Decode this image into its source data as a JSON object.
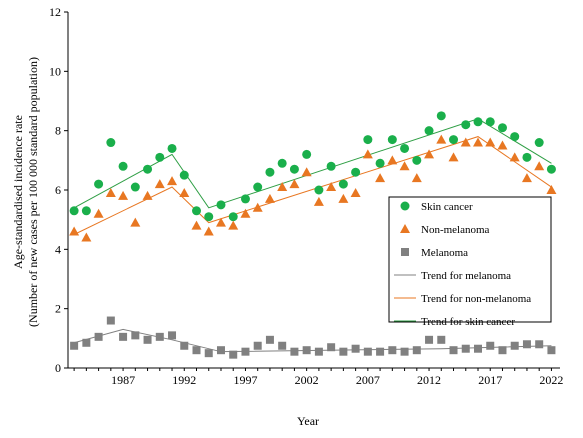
{
  "chart_data": {
    "type": "scatter",
    "ylabel": "Age-standardised incidence rate",
    "ylabel_sub": "(Number of new cases per 100 000 standard population)",
    "xlabel": "Year",
    "ylim": [
      0,
      12
    ],
    "yticks": [
      0,
      2,
      4,
      6,
      8,
      10,
      12
    ],
    "xlim": [
      1982.5,
      2022.7
    ],
    "xticks": [
      1987,
      1992,
      1997,
      2002,
      2007,
      2012,
      2017,
      2022
    ],
    "legend_position": "right",
    "grid": false,
    "x": [
      1983,
      1984,
      1985,
      1986,
      1987,
      1988,
      1989,
      1990,
      1991,
      1992,
      1993,
      1994,
      1995,
      1996,
      1997,
      1998,
      1999,
      2000,
      2001,
      2002,
      2003,
      2004,
      2005,
      2006,
      2007,
      2008,
      2009,
      2010,
      2011,
      2012,
      2013,
      2014,
      2015,
      2016,
      2017,
      2018,
      2019,
      2020,
      2021,
      2022
    ],
    "series": [
      {
        "name": "Skin cancer",
        "kind": "points",
        "marker": "circle",
        "color": "#1aaf4b",
        "values": [
          5.3,
          5.3,
          6.2,
          7.6,
          6.8,
          6.1,
          6.7,
          7.1,
          7.4,
          6.5,
          5.3,
          5.1,
          5.5,
          5.1,
          5.7,
          6.1,
          6.6,
          6.9,
          6.7,
          7.2,
          6.0,
          6.8,
          6.2,
          6.6,
          7.7,
          6.9,
          7.7,
          7.4,
          7.0,
          8.0,
          8.5,
          7.7,
          8.2,
          8.3,
          8.3,
          8.1,
          7.8,
          7.1,
          7.6,
          6.7
        ]
      },
      {
        "name": "Non-melanoma",
        "kind": "points",
        "marker": "triangle",
        "color": "#e87722",
        "values": [
          4.6,
          4.4,
          5.2,
          5.9,
          5.8,
          4.9,
          5.8,
          6.2,
          6.3,
          5.9,
          4.8,
          4.6,
          4.9,
          4.8,
          5.2,
          5.4,
          5.7,
          6.1,
          6.2,
          6.6,
          5.6,
          6.1,
          5.7,
          5.9,
          7.2,
          6.4,
          7.0,
          6.8,
          6.4,
          7.2,
          7.7,
          7.1,
          7.6,
          7.6,
          7.6,
          7.5,
          7.1,
          6.4,
          6.8,
          6.0
        ]
      },
      {
        "name": "Melanoma",
        "kind": "points",
        "marker": "square",
        "color": "#808080",
        "values": [
          0.75,
          0.85,
          1.05,
          1.6,
          1.05,
          1.1,
          0.95,
          1.05,
          1.1,
          0.75,
          0.6,
          0.5,
          0.6,
          0.45,
          0.55,
          0.75,
          0.95,
          0.75,
          0.55,
          0.6,
          0.55,
          0.7,
          0.55,
          0.65,
          0.55,
          0.55,
          0.6,
          0.55,
          0.6,
          0.95,
          0.95,
          0.6,
          0.65,
          0.65,
          0.75,
          0.6,
          0.75,
          0.8,
          0.8,
          0.6
        ]
      },
      {
        "name": "Trend for melanoma",
        "kind": "line",
        "color": "#808080",
        "points": [
          [
            1983,
            0.85
          ],
          [
            1987,
            1.3
          ],
          [
            1991,
            0.95
          ],
          [
            1995,
            0.55
          ],
          [
            2013,
            0.65
          ],
          [
            2022,
            0.75
          ]
        ]
      },
      {
        "name": "Trend for non-melanoma",
        "kind": "line",
        "color": "#e87722",
        "points": [
          [
            1983,
            4.5
          ],
          [
            1991,
            6.1
          ],
          [
            1994,
            4.9
          ],
          [
            2016,
            7.8
          ],
          [
            2022,
            6.1
          ]
        ]
      },
      {
        "name": "Trend for skin cancer",
        "kind": "line",
        "color": "#2e9e44",
        "points": [
          [
            1983,
            5.4
          ],
          [
            1991,
            7.2
          ],
          [
            1994,
            5.4
          ],
          [
            2016,
            8.4
          ],
          [
            2022,
            6.9
          ]
        ]
      }
    ]
  }
}
